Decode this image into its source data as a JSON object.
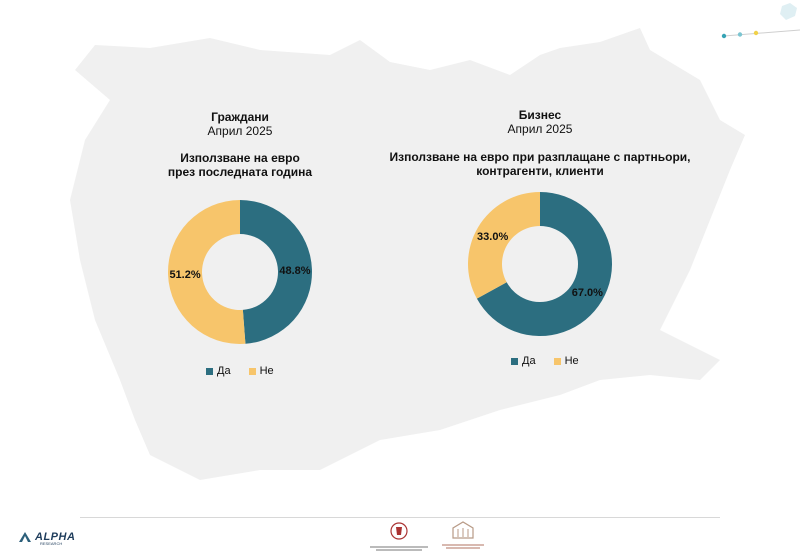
{
  "colors": {
    "yes": "#2c6e80",
    "no": "#f7c56b",
    "map": "#f0f0f0",
    "accent": "#36a3b5"
  },
  "left": {
    "group": "Граждани",
    "period": "Април 2025",
    "question_line1": "Използване на евро",
    "question_line2": "през последната година"
  },
  "right": {
    "group": "Бизнес",
    "period": "Април 2025",
    "question_line1": "Използване на евро при разплащане с партньори,",
    "question_line2": "контрагенти, клиенти"
  },
  "legend": {
    "yes": "Да",
    "no": "Не"
  },
  "footer": {
    "logo": "ALPHA",
    "logo_sub": "RESEARCH"
  },
  "chart_data": [
    {
      "type": "pie",
      "title": "Използване на евро през последната година",
      "categories": [
        "Да",
        "Не"
      ],
      "values": [
        48.8,
        51.2
      ],
      "labels": [
        "48.8%",
        "51.2%"
      ],
      "legend": "bottom"
    },
    {
      "type": "pie",
      "title": "Използване на евро при разплащане с партньори, контрагенти, клиенти",
      "categories": [
        "Да",
        "Не"
      ],
      "values": [
        67.0,
        33.0
      ],
      "labels": [
        "67.0%",
        "33.0%"
      ],
      "legend": "bottom"
    }
  ]
}
